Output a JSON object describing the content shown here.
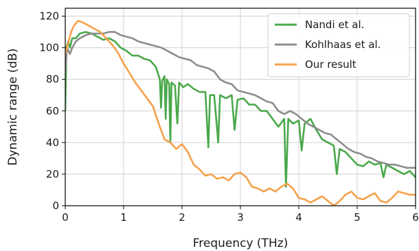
{
  "chart_data": {
    "type": "line",
    "title": "",
    "xlabel": "Frequency (THz)",
    "ylabel": "Dynamic range (dB)",
    "xlim": [
      0,
      6
    ],
    "ylim": [
      0,
      125
    ],
    "xticks": [
      0,
      1,
      2,
      3,
      4,
      5,
      6
    ],
    "yticks": [
      0,
      20,
      40,
      60,
      80,
      100,
      120
    ],
    "grid": true,
    "legend_position": "top-right",
    "series": [
      {
        "name": "Nandi et al.",
        "color": "#4aa84a",
        "points": [
          [
            0.0,
            60
          ],
          [
            0.02,
            100
          ],
          [
            0.05,
            104
          ],
          [
            0.08,
            100
          ],
          [
            0.12,
            106
          ],
          [
            0.18,
            106
          ],
          [
            0.25,
            109
          ],
          [
            0.35,
            110
          ],
          [
            0.45,
            109
          ],
          [
            0.55,
            107
          ],
          [
            0.65,
            105
          ],
          [
            0.75,
            106
          ],
          [
            0.85,
            104
          ],
          [
            0.95,
            100
          ],
          [
            1.05,
            98
          ],
          [
            1.15,
            95
          ],
          [
            1.25,
            95
          ],
          [
            1.35,
            93
          ],
          [
            1.45,
            92
          ],
          [
            1.55,
            88
          ],
          [
            1.62,
            80
          ],
          [
            1.64,
            62
          ],
          [
            1.66,
            79
          ],
          [
            1.7,
            82
          ],
          [
            1.72,
            55
          ],
          [
            1.74,
            80
          ],
          [
            1.78,
            77
          ],
          [
            1.8,
            40
          ],
          [
            1.82,
            78
          ],
          [
            1.88,
            76
          ],
          [
            1.92,
            52
          ],
          [
            1.95,
            78
          ],
          [
            2.02,
            75
          ],
          [
            2.1,
            77
          ],
          [
            2.2,
            74
          ],
          [
            2.3,
            72
          ],
          [
            2.4,
            72
          ],
          [
            2.45,
            37
          ],
          [
            2.48,
            70
          ],
          [
            2.55,
            70
          ],
          [
            2.62,
            40
          ],
          [
            2.65,
            70
          ],
          [
            2.75,
            68
          ],
          [
            2.85,
            70
          ],
          [
            2.9,
            48
          ],
          [
            2.95,
            67
          ],
          [
            3.05,
            68
          ],
          [
            3.15,
            64
          ],
          [
            3.25,
            64
          ],
          [
            3.35,
            60
          ],
          [
            3.45,
            60
          ],
          [
            3.55,
            55
          ],
          [
            3.65,
            50
          ],
          [
            3.75,
            55
          ],
          [
            3.78,
            12
          ],
          [
            3.82,
            55
          ],
          [
            3.9,
            52
          ],
          [
            4.0,
            54
          ],
          [
            4.05,
            35
          ],
          [
            4.1,
            52
          ],
          [
            4.2,
            55
          ],
          [
            4.3,
            48
          ],
          [
            4.4,
            42
          ],
          [
            4.5,
            40
          ],
          [
            4.6,
            38
          ],
          [
            4.65,
            20
          ],
          [
            4.7,
            36
          ],
          [
            4.8,
            34
          ],
          [
            4.9,
            30
          ],
          [
            5.0,
            26
          ],
          [
            5.1,
            25
          ],
          [
            5.2,
            28
          ],
          [
            5.3,
            26
          ],
          [
            5.4,
            27
          ],
          [
            5.45,
            18
          ],
          [
            5.5,
            26
          ],
          [
            5.6,
            24
          ],
          [
            5.7,
            22
          ],
          [
            5.8,
            20
          ],
          [
            5.9,
            22
          ],
          [
            6.0,
            18
          ]
        ]
      },
      {
        "name": "Kohlhaas et al.",
        "color": "#8c8c8c",
        "points": [
          [
            0.0,
            85
          ],
          [
            0.03,
            100
          ],
          [
            0.08,
            96
          ],
          [
            0.12,
            100
          ],
          [
            0.18,
            104
          ],
          [
            0.25,
            106
          ],
          [
            0.35,
            108
          ],
          [
            0.45,
            109
          ],
          [
            0.55,
            109
          ],
          [
            0.65,
            109
          ],
          [
            0.75,
            110
          ],
          [
            0.85,
            110
          ],
          [
            0.95,
            108
          ],
          [
            1.05,
            107
          ],
          [
            1.15,
            106
          ],
          [
            1.25,
            104
          ],
          [
            1.35,
            103
          ],
          [
            1.45,
            102
          ],
          [
            1.55,
            101
          ],
          [
            1.65,
            100
          ],
          [
            1.75,
            98
          ],
          [
            1.85,
            96
          ],
          [
            1.95,
            94
          ],
          [
            2.05,
            93
          ],
          [
            2.15,
            92
          ],
          [
            2.25,
            89
          ],
          [
            2.35,
            88
          ],
          [
            2.45,
            87
          ],
          [
            2.55,
            85
          ],
          [
            2.65,
            80
          ],
          [
            2.75,
            78
          ],
          [
            2.85,
            77
          ],
          [
            2.95,
            73
          ],
          [
            3.05,
            72
          ],
          [
            3.15,
            71
          ],
          [
            3.25,
            70
          ],
          [
            3.35,
            68
          ],
          [
            3.45,
            66
          ],
          [
            3.55,
            65
          ],
          [
            3.65,
            60
          ],
          [
            3.75,
            58
          ],
          [
            3.85,
            60
          ],
          [
            3.95,
            58
          ],
          [
            4.05,
            55
          ],
          [
            4.15,
            52
          ],
          [
            4.25,
            50
          ],
          [
            4.35,
            48
          ],
          [
            4.45,
            46
          ],
          [
            4.55,
            45
          ],
          [
            4.65,
            42
          ],
          [
            4.75,
            39
          ],
          [
            4.85,
            36
          ],
          [
            4.95,
            34
          ],
          [
            5.05,
            33
          ],
          [
            5.15,
            31
          ],
          [
            5.25,
            30
          ],
          [
            5.35,
            28
          ],
          [
            5.45,
            27
          ],
          [
            5.55,
            26
          ],
          [
            5.65,
            26
          ],
          [
            5.75,
            25
          ],
          [
            5.85,
            24
          ],
          [
            6.0,
            24
          ]
        ]
      },
      {
        "name": "Our result",
        "color": "#f5a04a",
        "points": [
          [
            0.0,
            96
          ],
          [
            0.05,
            103
          ],
          [
            0.1,
            110
          ],
          [
            0.15,
            114
          ],
          [
            0.22,
            117
          ],
          [
            0.3,
            116
          ],
          [
            0.4,
            114
          ],
          [
            0.5,
            112
          ],
          [
            0.6,
            110
          ],
          [
            0.7,
            106
          ],
          [
            0.8,
            102
          ],
          [
            0.9,
            97
          ],
          [
            1.0,
            90
          ],
          [
            1.1,
            84
          ],
          [
            1.2,
            78
          ],
          [
            1.3,
            73
          ],
          [
            1.4,
            68
          ],
          [
            1.5,
            63
          ],
          [
            1.6,
            52
          ],
          [
            1.7,
            42
          ],
          [
            1.8,
            40
          ],
          [
            1.9,
            36
          ],
          [
            2.0,
            39
          ],
          [
            2.1,
            34
          ],
          [
            2.2,
            26
          ],
          [
            2.3,
            23
          ],
          [
            2.4,
            19
          ],
          [
            2.5,
            20
          ],
          [
            2.6,
            17
          ],
          [
            2.7,
            18
          ],
          [
            2.8,
            16
          ],
          [
            2.9,
            20
          ],
          [
            3.0,
            21
          ],
          [
            3.1,
            18
          ],
          [
            3.2,
            12
          ],
          [
            3.3,
            11
          ],
          [
            3.4,
            9
          ],
          [
            3.5,
            11
          ],
          [
            3.6,
            9
          ],
          [
            3.7,
            12
          ],
          [
            3.8,
            14
          ],
          [
            3.9,
            11
          ],
          [
            4.0,
            5
          ],
          [
            4.1,
            4
          ],
          [
            4.2,
            2
          ],
          [
            4.3,
            4
          ],
          [
            4.4,
            6
          ],
          [
            4.5,
            3
          ],
          [
            4.6,
            0
          ],
          [
            4.7,
            3
          ],
          [
            4.8,
            7
          ],
          [
            4.9,
            9
          ],
          [
            5.0,
            5
          ],
          [
            5.1,
            4
          ],
          [
            5.2,
            6
          ],
          [
            5.3,
            8
          ],
          [
            5.4,
            3
          ],
          [
            5.5,
            2
          ],
          [
            5.6,
            5
          ],
          [
            5.7,
            9
          ],
          [
            5.8,
            8
          ],
          [
            5.9,
            7
          ],
          [
            6.0,
            7
          ]
        ]
      }
    ]
  }
}
